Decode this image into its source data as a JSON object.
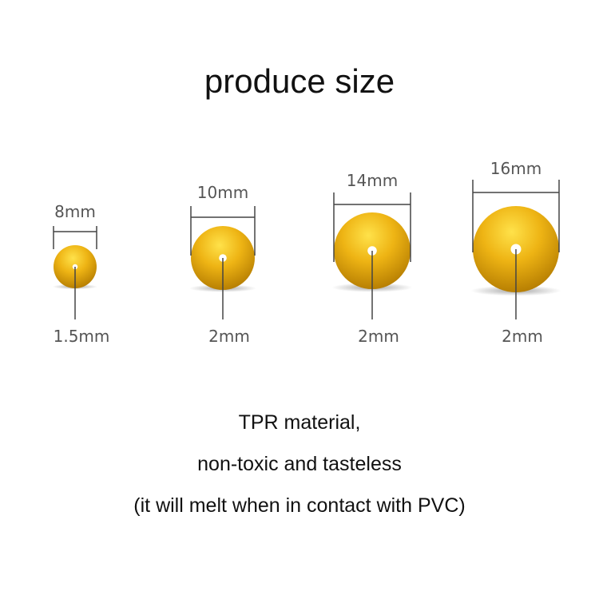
{
  "title": "produce size",
  "bead_color": "#e8ad14",
  "beads": [
    {
      "diameter": "8mm",
      "hole": "1.5mm"
    },
    {
      "diameter": "10mm",
      "hole": "2mm"
    },
    {
      "diameter": "14mm",
      "hole": "2mm"
    },
    {
      "diameter": "16mm",
      "hole": "2mm"
    }
  ],
  "notes": [
    "TPR material,",
    "non-toxic and tasteless",
    "(it will melt when in contact with PVC)"
  ]
}
